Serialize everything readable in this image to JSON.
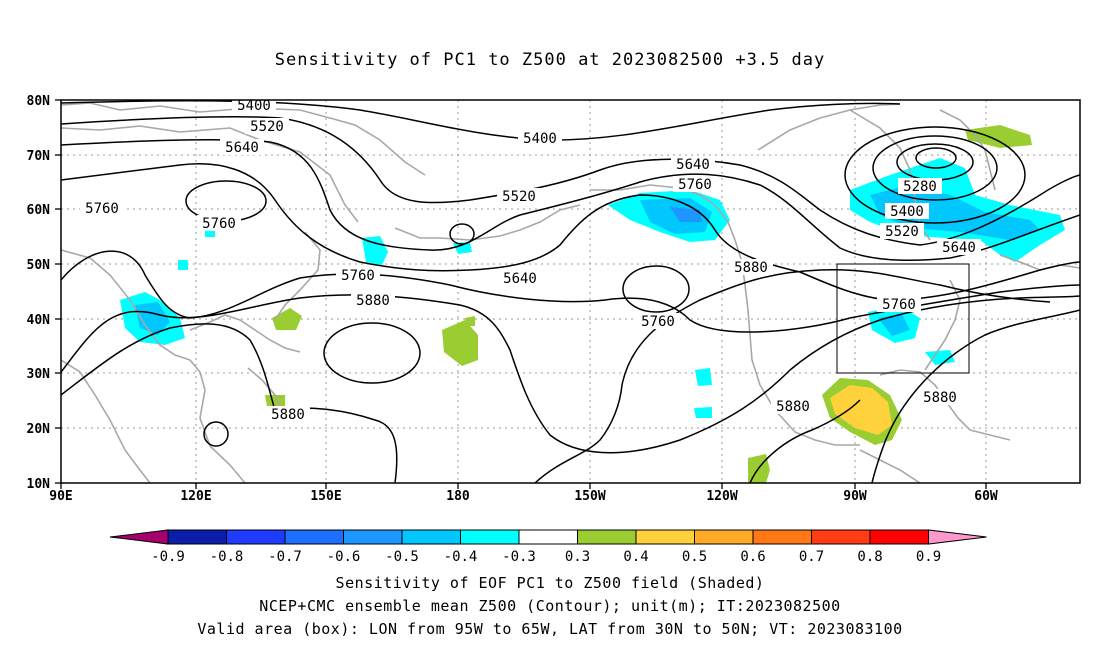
{
  "title": "Sensitivity of PC1 to Z500 at 2023082500 +3.5 day",
  "lat_ticks": [
    "80N",
    "70N",
    "60N",
    "50N",
    "40N",
    "30N",
    "20N",
    "10N"
  ],
  "lon_ticks": [
    "90E",
    "120E",
    "150E",
    "180",
    "150W",
    "120W",
    "90W",
    "60W"
  ],
  "contour_labels": [
    "5400",
    "5520",
    "5640",
    "5760",
    "5400",
    "5520",
    "5640",
    "5760",
    "5880",
    "5760",
    "5640",
    "5280",
    "5400",
    "5520",
    "5640",
    "5760",
    "5880",
    "5880",
    "5880",
    "5760",
    "5880"
  ],
  "colorbar": {
    "labels": [
      "-0.9",
      "-0.8",
      "-0.7",
      "-0.6",
      "-0.5",
      "-0.4",
      "-0.3",
      "0.3",
      "0.4",
      "0.5",
      "0.6",
      "0.7",
      "0.8",
      "0.9"
    ],
    "colors": [
      "#a6006f",
      "#0a1ea8",
      "#1e3cff",
      "#1e6eff",
      "#1e96ff",
      "#00c8ff",
      "#00ffff",
      "#ffffff",
      "#9acd32",
      "#ffd23c",
      "#ffaa28",
      "#ff7814",
      "#ff3c14",
      "#ff0000",
      "#ff99cc"
    ]
  },
  "valid_box": {
    "lon": "95W to 65W",
    "lat": "30N to 50N"
  },
  "captions": {
    "line1": "Sensitivity of EOF PC1 to Z500 field (Shaded)",
    "line2": "NCEP+CMC ensemble mean Z500 (Contour); unit(m); IT:2023082500",
    "line3": "Valid area (box): LON from 95W to 65W, LAT from 30N to 50N; VT: 2023083100"
  }
}
